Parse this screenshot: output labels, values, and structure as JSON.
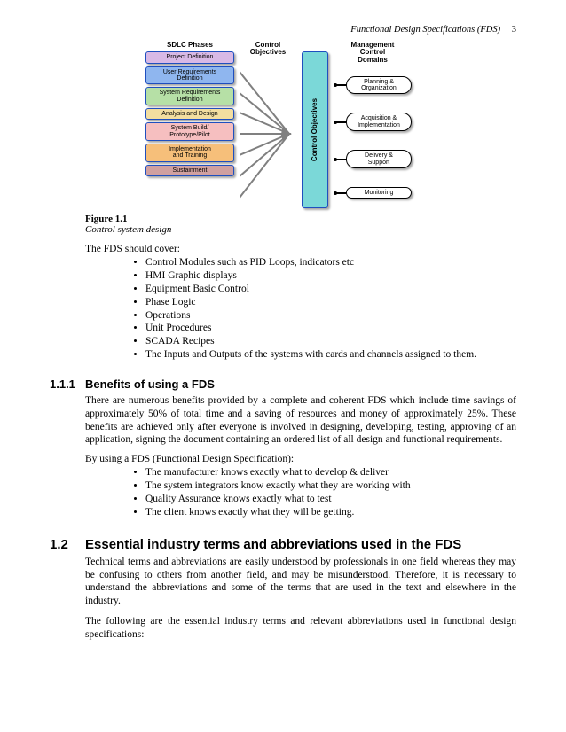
{
  "header": {
    "title": "Functional Design Specifications (FDS)",
    "page": "3"
  },
  "diagram": {
    "col_titles": {
      "sdlc": "SDLC Phases",
      "ctrl": "Control Objectives",
      "mcd": "Management\nControl\nDomains"
    },
    "sdlc_boxes": [
      {
        "label": "Project Definition",
        "bg": "#d8b9e6"
      },
      {
        "label": "User Requirements\nDefinition",
        "bg": "#8fb6ef"
      },
      {
        "label": "System Requirements\nDefinition",
        "bg": "#b6e0a6"
      },
      {
        "label": "Analysis and Design",
        "bg": "#f3dea0"
      },
      {
        "label": "System Build/\nPrototype/Pilot",
        "bg": "#f6bfc0"
      },
      {
        "label": "Implementation\nand Training",
        "bg": "#f6bf7a"
      },
      {
        "label": "Sustainment",
        "bg": "#d0a0a0"
      }
    ],
    "sdlc_border": "#1f4fbf",
    "arrows_color": "#808080",
    "ctrl_bar": {
      "label": "Control Objectives",
      "bg": "#7bd8d8",
      "border": "#1f4fbf"
    },
    "mcd_boxes": [
      "Planning &\nOrganization",
      "Acquisition &\nImplementation",
      "Delivery &\nSupport",
      "Monitoring"
    ],
    "mcd_border": "#000000"
  },
  "figure": {
    "label": "Figure 1.1",
    "caption": "Control system design"
  },
  "coverage": {
    "lead": "The FDS should cover:",
    "items": [
      "Control Modules such as PID Loops, indicators etc",
      "HMI Graphic displays",
      "Equipment Basic Control",
      "Phase Logic",
      "Operations",
      "Unit Procedures",
      "SCADA Recipes",
      "The Inputs and Outputs of the systems with cards and channels assigned to them."
    ]
  },
  "section_111": {
    "num": "1.1.1",
    "title": "Benefits of using a FDS",
    "para1": "There are numerous benefits provided by a complete and coherent FDS which include time savings of approximately 50% of total time and a saving of resources and money of approximately 25%. These benefits are achieved only after everyone is involved in designing, developing, testing, approving of an application, signing the document containing an ordered list of all design and functional requirements.",
    "lead2": "By using a FDS (Functional Design Specification):",
    "items": [
      "The manufacturer knows exactly what to develop & deliver",
      "The system integrators know exactly what they are working with",
      "Quality Assurance knows exactly what to test",
      "The client knows exactly what they will be getting."
    ]
  },
  "section_12": {
    "num": "1.2",
    "title": "Essential industry terms and abbreviations used in the FDS",
    "para1": "Technical terms and abbreviations are easily understood by professionals in one field whereas they may be confusing to others from another field, and may be misunderstood. Therefore, it is necessary to understand the abbreviations and some of the terms that are used in the text and elsewhere in the industry.",
    "para2": "The following are the essential industry terms and relevant abbreviations used in functional design specifications:"
  }
}
